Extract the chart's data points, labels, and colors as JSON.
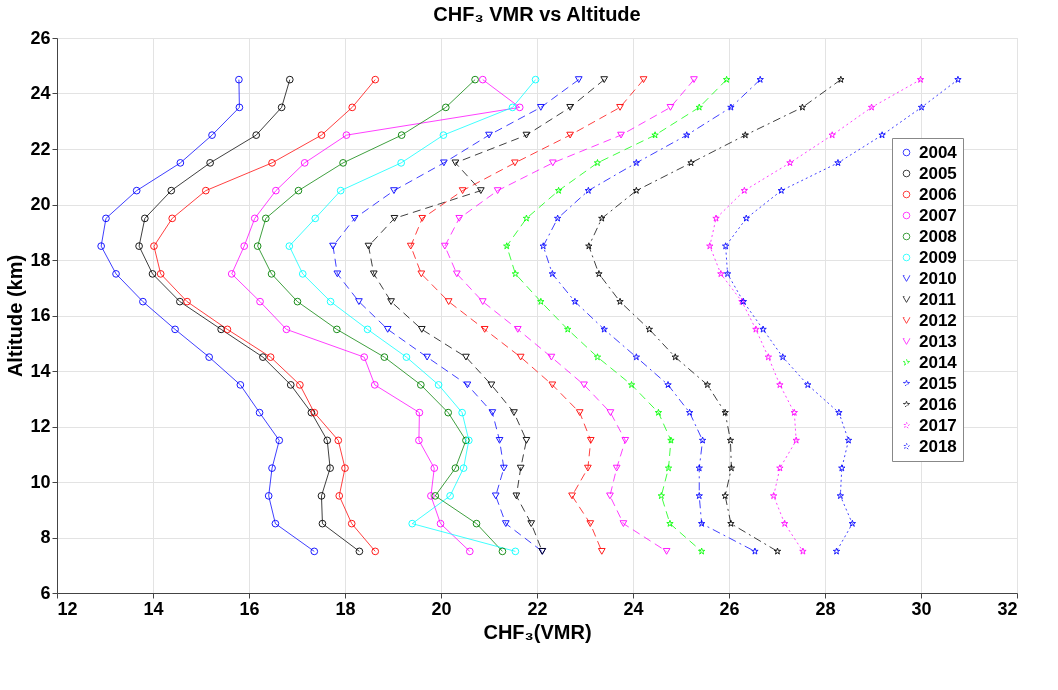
{
  "chart_data": {
    "type": "line",
    "title": "CHF₃ VMR vs Altitude",
    "xlabel": "CHF₃(VMR)",
    "ylabel": "Altitude (km)",
    "xlim": [
      12,
      32
    ],
    "xticks": [
      12,
      14,
      16,
      18,
      20,
      22,
      24,
      26,
      28,
      30,
      32
    ],
    "ylim": [
      6,
      26
    ],
    "yticks": [
      6,
      8,
      10,
      12,
      14,
      16,
      18,
      20,
      22,
      24,
      26
    ],
    "grid": true,
    "legend": "right",
    "series": [
      {
        "name": "2004",
        "color": "#0000ff",
        "marker": "circle",
        "line_style": "solid",
        "x": [
          15.79,
          15.8,
          15.23,
          14.57,
          13.66,
          13.02,
          12.92,
          13.23,
          13.79,
          14.46,
          15.17,
          15.82,
          16.22,
          16.63,
          16.48,
          16.41,
          16.55,
          17.36
        ],
        "values": [
          24.5,
          23.5,
          22.5,
          21.5,
          20.5,
          19.5,
          18.5,
          17.5,
          16.5,
          15.5,
          14.5,
          13.5,
          12.5,
          11.5,
          10.5,
          9.5,
          8.5,
          7.5
        ]
      },
      {
        "name": "2005",
        "color": "#000000",
        "marker": "circle",
        "line_style": "solid",
        "x": [
          16.85,
          16.68,
          16.15,
          15.19,
          14.38,
          13.83,
          13.71,
          13.99,
          14.56,
          15.42,
          16.29,
          16.87,
          17.3,
          17.63,
          17.69,
          17.51,
          17.53,
          18.3
        ],
        "values": [
          24.5,
          23.5,
          22.5,
          21.5,
          20.5,
          19.5,
          18.5,
          17.5,
          16.5,
          15.5,
          14.5,
          13.5,
          12.5,
          11.5,
          10.5,
          9.5,
          8.5,
          7.5
        ]
      },
      {
        "name": "2006",
        "color": "#ff0000",
        "marker": "circle",
        "line_style": "solid",
        "x": [
          18.63,
          18.15,
          17.51,
          16.48,
          15.1,
          14.4,
          14.02,
          14.16,
          14.71,
          15.55,
          16.45,
          17.06,
          17.36,
          17.86,
          18.0,
          17.88,
          18.14,
          18.63
        ],
        "values": [
          24.5,
          23.5,
          22.5,
          21.5,
          20.5,
          19.5,
          18.5,
          17.5,
          16.5,
          15.5,
          14.5,
          13.5,
          12.5,
          11.5,
          10.5,
          9.5,
          8.5,
          7.5
        ]
      },
      {
        "name": "2007",
        "color": "#ff00ff",
        "marker": "circle",
        "line_style": "solid",
        "x": [
          20.87,
          21.64,
          18.03,
          17.16,
          16.56,
          16.12,
          15.9,
          15.64,
          16.23,
          16.78,
          18.4,
          18.62,
          19.55,
          19.54,
          19.86,
          19.79,
          19.99,
          20.6
        ],
        "values": [
          24.5,
          23.5,
          22.5,
          21.5,
          20.5,
          19.5,
          18.5,
          17.5,
          16.5,
          15.5,
          14.5,
          13.5,
          12.5,
          11.5,
          10.5,
          9.5,
          8.5,
          7.5
        ]
      },
      {
        "name": "2008",
        "color": "#008000",
        "marker": "circle",
        "line_style": "solid",
        "x": [
          20.71,
          20.1,
          19.18,
          17.96,
          17.03,
          16.35,
          16.18,
          16.47,
          17.01,
          17.83,
          18.82,
          19.58,
          20.15,
          20.52,
          20.3,
          19.88,
          20.74,
          21.28
        ],
        "values": [
          24.5,
          23.5,
          22.5,
          21.5,
          20.5,
          19.5,
          18.5,
          17.5,
          16.5,
          15.5,
          14.5,
          13.5,
          12.5,
          11.5,
          10.5,
          9.5,
          8.5,
          7.5
        ]
      },
      {
        "name": "2009",
        "color": "#00ffff",
        "marker": "circle",
        "line_style": "solid",
        "x": [
          21.97,
          21.49,
          20.05,
          19.17,
          17.91,
          17.38,
          16.84,
          17.12,
          17.7,
          18.47,
          19.28,
          19.95,
          20.44,
          20.58,
          20.47,
          20.19,
          19.4,
          21.55
        ],
        "values": [
          24.5,
          23.5,
          22.5,
          21.5,
          20.5,
          19.5,
          18.5,
          17.5,
          16.5,
          15.5,
          14.5,
          13.5,
          12.5,
          11.5,
          10.5,
          9.5,
          8.5,
          7.5
        ]
      },
      {
        "name": "2010",
        "color": "#0000ff",
        "marker": "triangle",
        "line_style": "dashed",
        "x": [
          22.87,
          22.08,
          21.0,
          20.06,
          19.02,
          18.2,
          17.75,
          17.84,
          18.29,
          18.89,
          19.71,
          20.55,
          21.07,
          21.22,
          21.31,
          21.14,
          21.35,
          22.11
        ],
        "values": [
          24.5,
          23.5,
          22.5,
          21.5,
          20.5,
          19.5,
          18.5,
          17.5,
          16.5,
          15.5,
          14.5,
          13.5,
          12.5,
          11.5,
          10.5,
          9.5,
          8.5,
          7.5
        ]
      },
      {
        "name": "2011",
        "color": "#000000",
        "marker": "triangle",
        "line_style": "dashed",
        "x": [
          23.4,
          22.69,
          21.78,
          20.3,
          20.83,
          19.03,
          18.49,
          18.6,
          18.96,
          19.6,
          20.52,
          21.05,
          21.52,
          21.78,
          21.66,
          21.57,
          21.88,
          22.11
        ],
        "values": [
          24.5,
          23.5,
          22.5,
          21.5,
          20.5,
          19.5,
          18.5,
          17.5,
          16.5,
          15.5,
          14.5,
          13.5,
          12.5,
          11.5,
          10.5,
          9.5,
          8.5,
          7.5
        ]
      },
      {
        "name": "2012",
        "color": "#ff0000",
        "marker": "triangle",
        "line_style": "dashed",
        "x": [
          24.22,
          23.73,
          22.69,
          21.54,
          20.45,
          19.61,
          19.37,
          19.59,
          20.16,
          20.91,
          21.66,
          22.32,
          22.89,
          23.12,
          23.06,
          22.73,
          23.11,
          23.35
        ],
        "values": [
          24.5,
          23.5,
          22.5,
          21.5,
          20.5,
          19.5,
          18.5,
          17.5,
          16.5,
          15.5,
          14.5,
          13.5,
          12.5,
          11.5,
          10.5,
          9.5,
          8.5,
          7.5
        ]
      },
      {
        "name": "2013",
        "color": "#ff00ff",
        "marker": "triangle",
        "line_style": "dashed",
        "x": [
          25.27,
          24.78,
          23.75,
          22.33,
          21.18,
          20.38,
          20.08,
          20.33,
          20.87,
          21.6,
          22.3,
          22.98,
          23.53,
          23.84,
          23.66,
          23.52,
          23.8,
          24.7
        ],
        "values": [
          24.5,
          23.5,
          22.5,
          21.5,
          20.5,
          19.5,
          18.5,
          17.5,
          16.5,
          15.5,
          14.5,
          13.5,
          12.5,
          11.5,
          10.5,
          9.5,
          8.5,
          7.5
        ]
      },
      {
        "name": "2014",
        "color": "#00ff00",
        "marker": "star",
        "line_style": "dashed",
        "x": [
          25.95,
          25.38,
          24.46,
          23.26,
          22.45,
          21.78,
          21.37,
          21.55,
          22.08,
          22.64,
          23.26,
          23.97,
          24.53,
          24.79,
          24.74,
          24.59,
          24.77,
          25.43
        ],
        "values": [
          24.5,
          23.5,
          22.5,
          21.5,
          20.5,
          19.5,
          18.5,
          17.5,
          16.5,
          15.5,
          14.5,
          13.5,
          12.5,
          11.5,
          10.5,
          9.5,
          8.5,
          7.5
        ]
      },
      {
        "name": "2015",
        "color": "#0000ff",
        "marker": "star",
        "line_style": "dashdot",
        "x": [
          26.65,
          26.04,
          25.12,
          24.07,
          23.07,
          22.43,
          22.13,
          22.32,
          22.79,
          23.4,
          24.07,
          24.73,
          25.18,
          25.45,
          25.38,
          25.38,
          25.43,
          26.54
        ],
        "values": [
          24.5,
          23.5,
          22.5,
          21.5,
          20.5,
          19.5,
          18.5,
          17.5,
          16.5,
          15.5,
          14.5,
          13.5,
          12.5,
          11.5,
          10.5,
          9.5,
          8.5,
          7.5
        ]
      },
      {
        "name": "2016",
        "color": "#000000",
        "marker": "star",
        "line_style": "dashdot",
        "x": [
          28.33,
          27.53,
          26.34,
          25.21,
          24.07,
          23.35,
          23.08,
          23.29,
          23.73,
          24.34,
          24.88,
          25.55,
          25.92,
          26.03,
          26.05,
          25.92,
          26.04,
          27.01
        ],
        "values": [
          24.5,
          23.5,
          22.5,
          21.5,
          20.5,
          19.5,
          18.5,
          17.5,
          16.5,
          15.5,
          14.5,
          13.5,
          12.5,
          11.5,
          10.5,
          9.5,
          8.5,
          7.5
        ]
      },
      {
        "name": "2017",
        "color": "#ff00ff",
        "marker": "star",
        "line_style": "dotted",
        "x": [
          29.99,
          28.97,
          28.15,
          27.27,
          26.32,
          25.73,
          25.6,
          25.83,
          26.27,
          26.56,
          26.82,
          27.06,
          27.36,
          27.4,
          27.06,
          26.93,
          27.16,
          27.54
        ],
        "values": [
          24.5,
          23.5,
          22.5,
          21.5,
          20.5,
          19.5,
          18.5,
          17.5,
          16.5,
          15.5,
          14.5,
          13.5,
          12.5,
          11.5,
          10.5,
          9.5,
          8.5,
          7.5
        ]
      },
      {
        "name": "2018",
        "color": "#0000ff",
        "marker": "star",
        "line_style": "dotted",
        "x": [
          30.77,
          30.01,
          29.19,
          28.27,
          27.09,
          26.36,
          25.93,
          25.97,
          26.3,
          26.71,
          27.12,
          27.64,
          28.29,
          28.49,
          28.35,
          28.32,
          28.57,
          28.24
        ],
        "values": [
          24.5,
          23.5,
          22.5,
          21.5,
          20.5,
          19.5,
          18.5,
          17.5,
          16.5,
          15.5,
          14.5,
          13.5,
          12.5,
          11.5,
          10.5,
          9.5,
          8.5,
          7.5
        ]
      }
    ]
  }
}
